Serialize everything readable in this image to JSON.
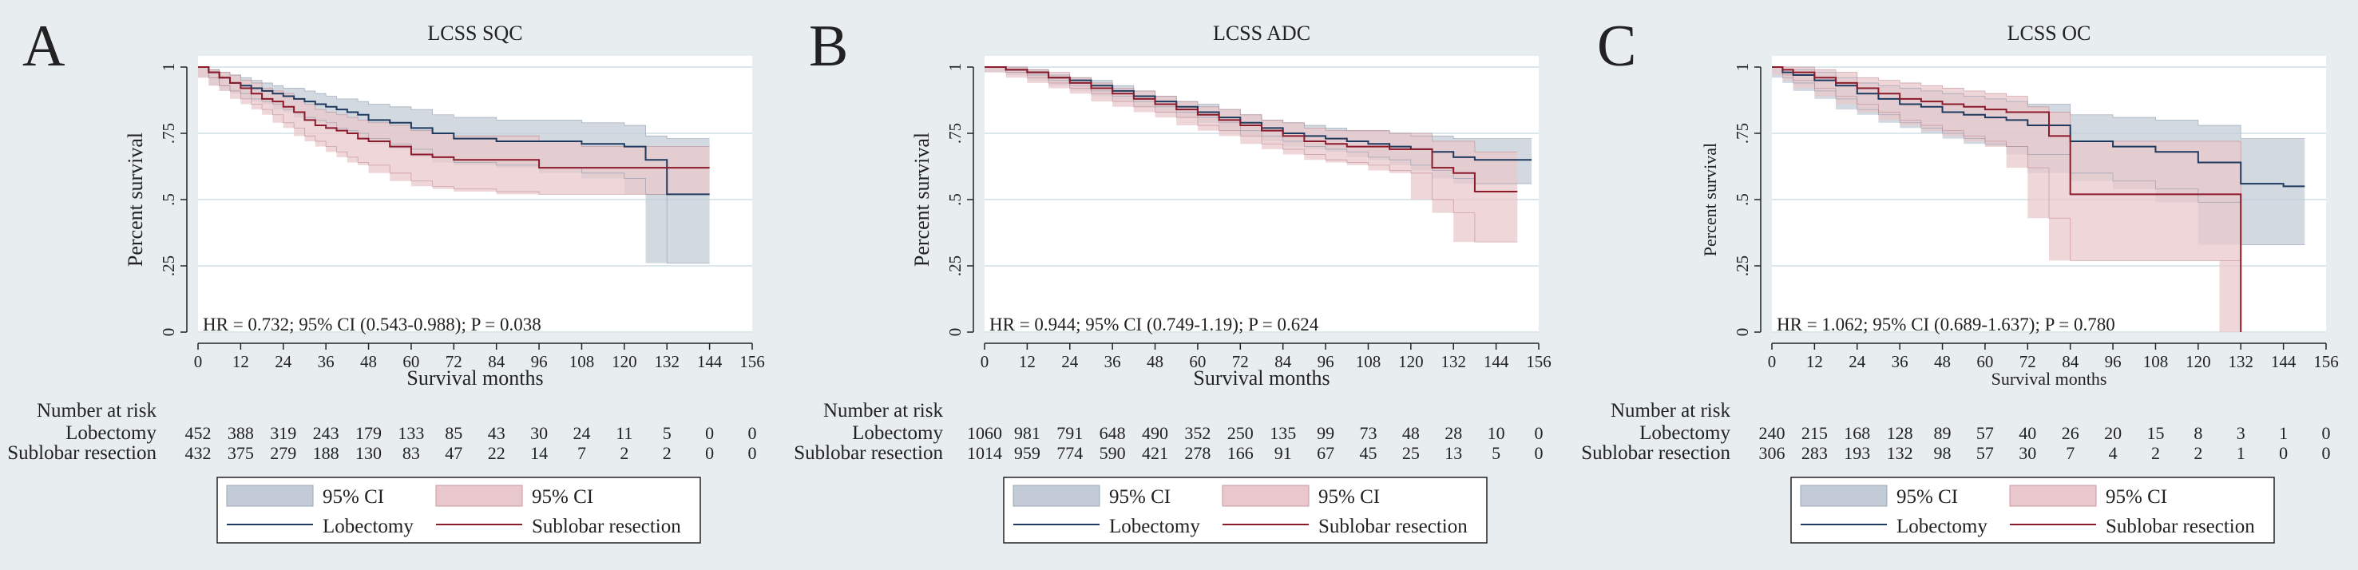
{
  "colors": {
    "background": "#e8eef0",
    "plot_bg": "#ffffff",
    "lobectomy_line": "#1f3a5f",
    "lobectomy_ci": "#c3ccd6",
    "sublobar_line": "#8b1a2b",
    "sublobar_ci": "#e8c8cc",
    "grid": "#dbe7ea"
  },
  "chart_data": [
    {
      "panel_letter": "A",
      "type": "line",
      "title": "LCSS SQC",
      "xlabel": "Survival months",
      "ylabel": "Percent survival",
      "xlim": [
        0,
        156
      ],
      "ylim": [
        0,
        1
      ],
      "x_ticks": [
        "0",
        "12",
        "24",
        "36",
        "48",
        "60",
        "72",
        "84",
        "96",
        "108",
        "120",
        "132",
        "144",
        "156"
      ],
      "y_ticks": [
        "0",
        ".25",
        ".5",
        ".75",
        "1"
      ],
      "annotation": "HR = 0.732; 95% CI (0.543-0.988); P = 0.038",
      "series": [
        {
          "name": "Lobectomy",
          "x": [
            0,
            3,
            6,
            9,
            12,
            15,
            18,
            21,
            24,
            27,
            30,
            33,
            36,
            39,
            42,
            45,
            48,
            54,
            60,
            66,
            72,
            84,
            96,
            108,
            120,
            126,
            132,
            144
          ],
          "values": [
            1,
            0.98,
            0.96,
            0.94,
            0.93,
            0.92,
            0.91,
            0.9,
            0.89,
            0.88,
            0.87,
            0.86,
            0.85,
            0.84,
            0.83,
            0.82,
            0.8,
            0.79,
            0.77,
            0.75,
            0.73,
            0.72,
            0.72,
            0.71,
            0.7,
            0.65,
            0.52,
            0.52
          ],
          "ci_lower": [
            1,
            0.96,
            0.93,
            0.91,
            0.9,
            0.88,
            0.87,
            0.86,
            0.84,
            0.83,
            0.81,
            0.8,
            0.79,
            0.77,
            0.76,
            0.75,
            0.73,
            0.71,
            0.69,
            0.66,
            0.64,
            0.63,
            0.62,
            0.6,
            0.58,
            0.52,
            0.26,
            0.26
          ],
          "ci_upper": [
            1,
            0.99,
            0.98,
            0.97,
            0.96,
            0.95,
            0.94,
            0.93,
            0.92,
            0.92,
            0.91,
            0.9,
            0.89,
            0.88,
            0.88,
            0.87,
            0.86,
            0.85,
            0.84,
            0.82,
            0.81,
            0.8,
            0.8,
            0.79,
            0.78,
            0.74,
            0.73,
            0.73
          ]
        },
        {
          "name": "Sublobar resection",
          "x": [
            0,
            3,
            6,
            9,
            12,
            15,
            18,
            21,
            24,
            27,
            30,
            33,
            36,
            39,
            42,
            45,
            48,
            54,
            60,
            66,
            72,
            84,
            96,
            108,
            120,
            132,
            144
          ],
          "values": [
            1,
            0.98,
            0.96,
            0.94,
            0.92,
            0.9,
            0.88,
            0.87,
            0.85,
            0.83,
            0.8,
            0.78,
            0.77,
            0.76,
            0.75,
            0.73,
            0.72,
            0.7,
            0.67,
            0.66,
            0.65,
            0.65,
            0.62,
            0.62,
            0.62,
            0.62,
            0.62
          ],
          "ci_lower": [
            1,
            0.96,
            0.93,
            0.91,
            0.88,
            0.86,
            0.84,
            0.82,
            0.79,
            0.77,
            0.74,
            0.72,
            0.7,
            0.68,
            0.66,
            0.64,
            0.63,
            0.6,
            0.57,
            0.55,
            0.54,
            0.53,
            0.52,
            0.52,
            0.52,
            0.52,
            0.52
          ],
          "ci_upper": [
            1,
            0.99,
            0.98,
            0.97,
            0.95,
            0.94,
            0.92,
            0.91,
            0.9,
            0.88,
            0.86,
            0.84,
            0.83,
            0.82,
            0.81,
            0.8,
            0.79,
            0.78,
            0.76,
            0.75,
            0.74,
            0.74,
            0.72,
            0.7,
            0.7,
            0.7,
            0.7
          ]
        }
      ],
      "risk_table": {
        "title": "Number at risk",
        "rows": [
          {
            "label": "Lobectomy",
            "values": [
              "452",
              "388",
              "319",
              "243",
              "179",
              "133",
              "85",
              "43",
              "30",
              "24",
              "11",
              "5",
              "0",
              "0"
            ]
          },
          {
            "label": "Sublobar resection",
            "values": [
              "432",
              "375",
              "279",
              "188",
              "130",
              "83",
              "47",
              "22",
              "14",
              "7",
              "2",
              "2",
              "0",
              "0"
            ]
          }
        ]
      },
      "legend": {
        "ci1": "95% CI",
        "ci2": "95% CI",
        "line1": "Lobectomy",
        "line2": "Sublobar resection"
      }
    },
    {
      "panel_letter": "B",
      "type": "line",
      "title": "LCSS ADC",
      "xlabel": "Survival months",
      "ylabel": "Percent survival",
      "xlim": [
        0,
        156
      ],
      "ylim": [
        0,
        1
      ],
      "x_ticks": [
        "0",
        "12",
        "24",
        "36",
        "48",
        "60",
        "72",
        "84",
        "96",
        "108",
        "120",
        "132",
        "144",
        "156"
      ],
      "y_ticks": [
        "0",
        ".25",
        ".5",
        ".75",
        "1"
      ],
      "annotation": "HR = 0.944; 95% CI (0.749-1.19); P = 0.624",
      "series": [
        {
          "name": "Lobectomy",
          "x": [
            0,
            6,
            12,
            18,
            24,
            30,
            36,
            42,
            48,
            54,
            60,
            66,
            72,
            78,
            84,
            90,
            96,
            102,
            108,
            114,
            120,
            126,
            132,
            138,
            144,
            150,
            154
          ],
          "values": [
            1,
            0.99,
            0.98,
            0.96,
            0.95,
            0.93,
            0.91,
            0.89,
            0.87,
            0.85,
            0.83,
            0.81,
            0.79,
            0.77,
            0.75,
            0.74,
            0.73,
            0.72,
            0.71,
            0.7,
            0.69,
            0.68,
            0.66,
            0.65,
            0.65,
            0.65,
            0.65
          ],
          "ci_lower": [
            1,
            0.98,
            0.97,
            0.95,
            0.93,
            0.91,
            0.89,
            0.87,
            0.85,
            0.83,
            0.81,
            0.79,
            0.76,
            0.74,
            0.72,
            0.7,
            0.69,
            0.68,
            0.66,
            0.65,
            0.63,
            0.61,
            0.58,
            0.56,
            0.56,
            0.56,
            0.56
          ],
          "ci_upper": [
            1,
            1,
            0.99,
            0.97,
            0.96,
            0.95,
            0.93,
            0.91,
            0.89,
            0.87,
            0.86,
            0.84,
            0.82,
            0.8,
            0.79,
            0.78,
            0.77,
            0.76,
            0.76,
            0.75,
            0.74,
            0.74,
            0.73,
            0.73,
            0.73,
            0.73,
            0.73
          ]
        },
        {
          "name": "Sublobar resection",
          "x": [
            0,
            6,
            12,
            18,
            24,
            30,
            36,
            42,
            48,
            54,
            60,
            66,
            72,
            78,
            84,
            90,
            96,
            102,
            108,
            114,
            120,
            126,
            132,
            138,
            144,
            150
          ],
          "values": [
            1,
            0.99,
            0.98,
            0.96,
            0.94,
            0.92,
            0.9,
            0.88,
            0.86,
            0.84,
            0.82,
            0.8,
            0.78,
            0.76,
            0.74,
            0.72,
            0.71,
            0.7,
            0.7,
            0.69,
            0.69,
            0.62,
            0.6,
            0.53,
            0.53,
            0.53
          ],
          "ci_lower": [
            1,
            0.98,
            0.96,
            0.94,
            0.92,
            0.9,
            0.87,
            0.85,
            0.83,
            0.81,
            0.78,
            0.76,
            0.74,
            0.71,
            0.69,
            0.67,
            0.65,
            0.64,
            0.63,
            0.61,
            0.6,
            0.5,
            0.45,
            0.34,
            0.34,
            0.34
          ],
          "ci_upper": [
            1,
            1,
            0.99,
            0.98,
            0.96,
            0.94,
            0.92,
            0.91,
            0.89,
            0.87,
            0.85,
            0.84,
            0.82,
            0.8,
            0.79,
            0.77,
            0.76,
            0.76,
            0.76,
            0.75,
            0.75,
            0.72,
            0.72,
            0.68,
            0.68,
            0.68
          ]
        }
      ],
      "risk_table": {
        "title": "Number at risk",
        "rows": [
          {
            "label": "Lobectomy",
            "values": [
              "1060",
              "981",
              "791",
              "648",
              "490",
              "352",
              "250",
              "135",
              "99",
              "73",
              "48",
              "28",
              "10",
              "0"
            ]
          },
          {
            "label": "Sublobar resection",
            "values": [
              "1014",
              "959",
              "774",
              "590",
              "421",
              "278",
              "166",
              "91",
              "67",
              "45",
              "25",
              "13",
              "5",
              "0"
            ]
          }
        ]
      },
      "legend": {
        "ci1": "95% CI",
        "ci2": "95% CI",
        "line1": "Lobectomy",
        "line2": "Sublobar resection"
      }
    },
    {
      "panel_letter": "C",
      "type": "line",
      "title": "LCSS OC",
      "xlabel": "Survival months",
      "ylabel": "Percent survival",
      "xlim": [
        0,
        156
      ],
      "ylim": [
        0,
        1
      ],
      "x_ticks": [
        "0",
        "12",
        "24",
        "36",
        "48",
        "60",
        "72",
        "84",
        "96",
        "108",
        "120",
        "132",
        "144",
        "156"
      ],
      "y_ticks": [
        "0",
        ".25",
        ".5",
        ".75",
        "1"
      ],
      "annotation": "HR = 1.062; 95% CI (0.689-1.637); P = 0.780",
      "series": [
        {
          "name": "Lobectomy",
          "x": [
            0,
            3,
            6,
            12,
            18,
            24,
            30,
            36,
            42,
            48,
            54,
            60,
            66,
            72,
            84,
            96,
            108,
            120,
            132,
            144,
            150
          ],
          "values": [
            1,
            0.98,
            0.97,
            0.95,
            0.93,
            0.9,
            0.88,
            0.86,
            0.85,
            0.83,
            0.82,
            0.81,
            0.8,
            0.78,
            0.72,
            0.7,
            0.68,
            0.64,
            0.56,
            0.55,
            0.55
          ],
          "ci_lower": [
            1,
            0.96,
            0.94,
            0.91,
            0.88,
            0.84,
            0.82,
            0.79,
            0.77,
            0.75,
            0.73,
            0.71,
            0.7,
            0.67,
            0.6,
            0.57,
            0.54,
            0.49,
            0.33,
            0.33,
            0.33
          ],
          "ci_upper": [
            1,
            0.99,
            0.99,
            0.98,
            0.96,
            0.94,
            0.93,
            0.92,
            0.91,
            0.9,
            0.89,
            0.88,
            0.87,
            0.86,
            0.82,
            0.81,
            0.8,
            0.78,
            0.73,
            0.73,
            0.73
          ]
        },
        {
          "name": "Sublobar resection",
          "x": [
            0,
            3,
            6,
            12,
            18,
            24,
            30,
            36,
            42,
            48,
            54,
            60,
            66,
            72,
            78,
            84,
            96,
            108,
            120,
            126,
            132
          ],
          "values": [
            1,
            0.99,
            0.98,
            0.96,
            0.94,
            0.92,
            0.9,
            0.88,
            0.87,
            0.86,
            0.85,
            0.84,
            0.83,
            0.83,
            0.74,
            0.52,
            0.52,
            0.52,
            0.52,
            0.52,
            0
          ],
          "ci_lower": [
            1,
            0.97,
            0.95,
            0.92,
            0.89,
            0.86,
            0.83,
            0.8,
            0.78,
            0.76,
            0.74,
            0.72,
            0.7,
            0.62,
            0.43,
            0.27,
            0.27,
            0.27,
            0.27,
            0.27,
            0
          ],
          "ci_upper": [
            1,
            1,
            1,
            0.99,
            0.98,
            0.96,
            0.95,
            0.94,
            0.93,
            0.92,
            0.91,
            0.9,
            0.89,
            0.85,
            0.83,
            0.72,
            0.72,
            0.72,
            0.72,
            0.72,
            0
          ]
        }
      ],
      "risk_table": {
        "title": "Number at risk",
        "rows": [
          {
            "label": "Lobectomy",
            "values": [
              "240",
              "215",
              "168",
              "128",
              "89",
              "57",
              "40",
              "26",
              "20",
              "15",
              "8",
              "3",
              "1",
              "0"
            ]
          },
          {
            "label": "Sublobar resection",
            "values": [
              "306",
              "283",
              "193",
              "132",
              "98",
              "57",
              "30",
              "7",
              "4",
              "2",
              "2",
              "1",
              "0",
              "0"
            ]
          }
        ]
      },
      "legend": {
        "ci1": "95% CI",
        "ci2": "95% CI",
        "line1": "Lobectomy",
        "line2": "Sublobar resection"
      }
    }
  ]
}
